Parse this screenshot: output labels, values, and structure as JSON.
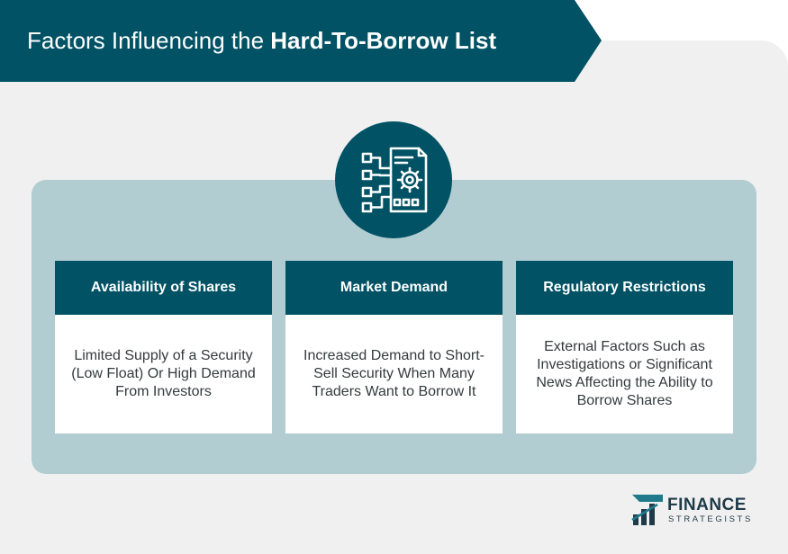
{
  "title": {
    "regular": "Factors Influencing the ",
    "bold": "Hard-To-Borrow List"
  },
  "hub": {
    "icon": "document-gear-flowchart-icon"
  },
  "factors": [
    {
      "heading": "Availability of Shares",
      "description": "Limited Supply of a Security (Low Float) Or High Demand From Investors"
    },
    {
      "heading": "Market Demand",
      "description": "Increased Demand to Short-Sell Security When Many Traders Want to Borrow It"
    },
    {
      "heading": "Regulatory Restrictions",
      "description": "External Factors Such as Investigations or Significant News Affecting the Ability to Borrow Shares"
    }
  ],
  "logo": {
    "line1": "FINANCE",
    "line2": "STRATEGISTS",
    "icon": "rising-bars-logo-icon"
  },
  "colors": {
    "primary": "#005264",
    "panel": "#b2cdd2",
    "background": "#f0f0f0"
  }
}
